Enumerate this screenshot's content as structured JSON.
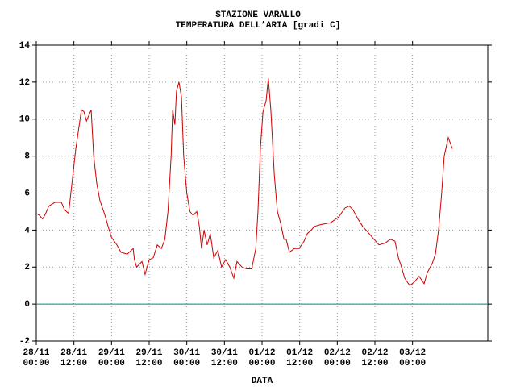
{
  "chart_data": {
    "type": "line",
    "title": "STAZIONE VARALLO",
    "subtitle": "TEMPERATURA DELL’ARIA [gradi C]",
    "x_label": "DATA",
    "x": [
      0,
      1,
      2,
      3,
      4,
      6,
      8,
      9,
      10.3,
      12.6,
      14.4,
      15.2,
      16,
      17.5,
      18.3,
      19.3,
      20.3,
      21.9,
      22.9,
      24,
      25.7,
      27,
      29,
      30.9,
      31.3,
      32,
      33.7,
      34.7,
      36,
      37.3,
      38.6,
      39.9,
      41,
      42,
      43,
      43.5,
      44.2,
      44.7,
      45.5,
      46.3,
      47,
      48,
      49,
      50,
      51.2,
      52,
      52.7,
      53.5,
      54.5,
      55.5,
      56.6,
      57.9,
      59.1,
      60.4,
      61.7,
      63,
      64,
      65.6,
      67.1,
      68.7,
      70,
      70.7,
      71.5,
      72.3,
      73.3,
      74,
      74.8,
      75.9,
      76.9,
      77.9,
      79,
      79.7,
      80.7,
      82.3,
      83.8,
      85.4,
      86.4,
      87.7,
      88.7,
      90.8,
      93.9,
      96.4,
      98.5,
      99.8,
      101,
      102.6,
      104.1,
      105.7,
      107.2,
      109.3,
      111.3,
      112.9,
      114.4,
      115.5,
      116.5,
      117.5,
      119.1,
      120.6,
      122.1,
      123.7,
      124.7,
      126.3,
      127.3,
      128.3,
      129.3,
      130.1,
      131.4,
      132.7
    ],
    "series": [
      {
        "color": "#cc0000",
        "values": [
          4.9,
          4.8,
          4.6,
          4.9,
          5.3,
          5.5,
          5.5,
          5.1,
          4.9,
          8.4,
          10.5,
          10.4,
          9.9,
          10.5,
          8.0,
          6.5,
          5.6,
          4.8,
          4.2,
          3.6,
          3.2,
          2.8,
          2.7,
          3.0,
          2.4,
          2.0,
          2.3,
          1.6,
          2.4,
          2.5,
          3.2,
          3.0,
          3.5,
          5.0,
          8.0,
          10.5,
          9.7,
          11.5,
          12.0,
          11.2,
          8.0,
          6.0,
          5.0,
          4.8,
          5.0,
          4.2,
          3.0,
          4.0,
          3.2,
          3.8,
          2.5,
          2.9,
          2.0,
          2.4,
          2.0,
          1.4,
          2.3,
          2.0,
          1.9,
          1.9,
          3.0,
          5.0,
          8.5,
          10.4,
          11.0,
          12.2,
          10.5,
          7.0,
          5.0,
          4.4,
          3.5,
          3.5,
          2.8,
          3.0,
          3.0,
          3.4,
          3.8,
          4.0,
          4.2,
          4.3,
          4.4,
          4.7,
          5.2,
          5.3,
          5.1,
          4.6,
          4.2,
          3.9,
          3.6,
          3.2,
          3.3,
          3.5,
          3.4,
          2.5,
          2.0,
          1.4,
          1.0,
          1.2,
          1.5,
          1.1,
          1.7,
          2.2,
          2.7,
          4.0,
          6.0,
          8.0,
          9.0,
          8.4
        ]
      }
    ],
    "xlim": [
      0,
      144
    ],
    "xticks": [
      {
        "value": 0,
        "label": "28/11 00:00"
      },
      {
        "value": 12,
        "label": "28/11 12:00"
      },
      {
        "value": 24,
        "label": "29/11 00:00"
      },
      {
        "value": 36,
        "label": "29/11 12:00"
      },
      {
        "value": 48,
        "label": "30/11 00:00"
      },
      {
        "value": 60,
        "label": "30/11 12:00"
      },
      {
        "value": 72,
        "label": "01/12 00:00"
      },
      {
        "value": 84,
        "label": "01/12 12:00"
      },
      {
        "value": 96,
        "label": "02/12 00:00"
      },
      {
        "value": 108,
        "label": "02/12 12:00"
      },
      {
        "value": 120,
        "label": "03/12 00:00"
      }
    ],
    "ylim": [
      -2,
      14
    ],
    "yticks": [
      -2,
      0,
      2,
      4,
      6,
      8,
      10,
      12,
      14
    ],
    "grid": true,
    "reference_line": {
      "value": 0,
      "color": "#008b8b"
    }
  }
}
